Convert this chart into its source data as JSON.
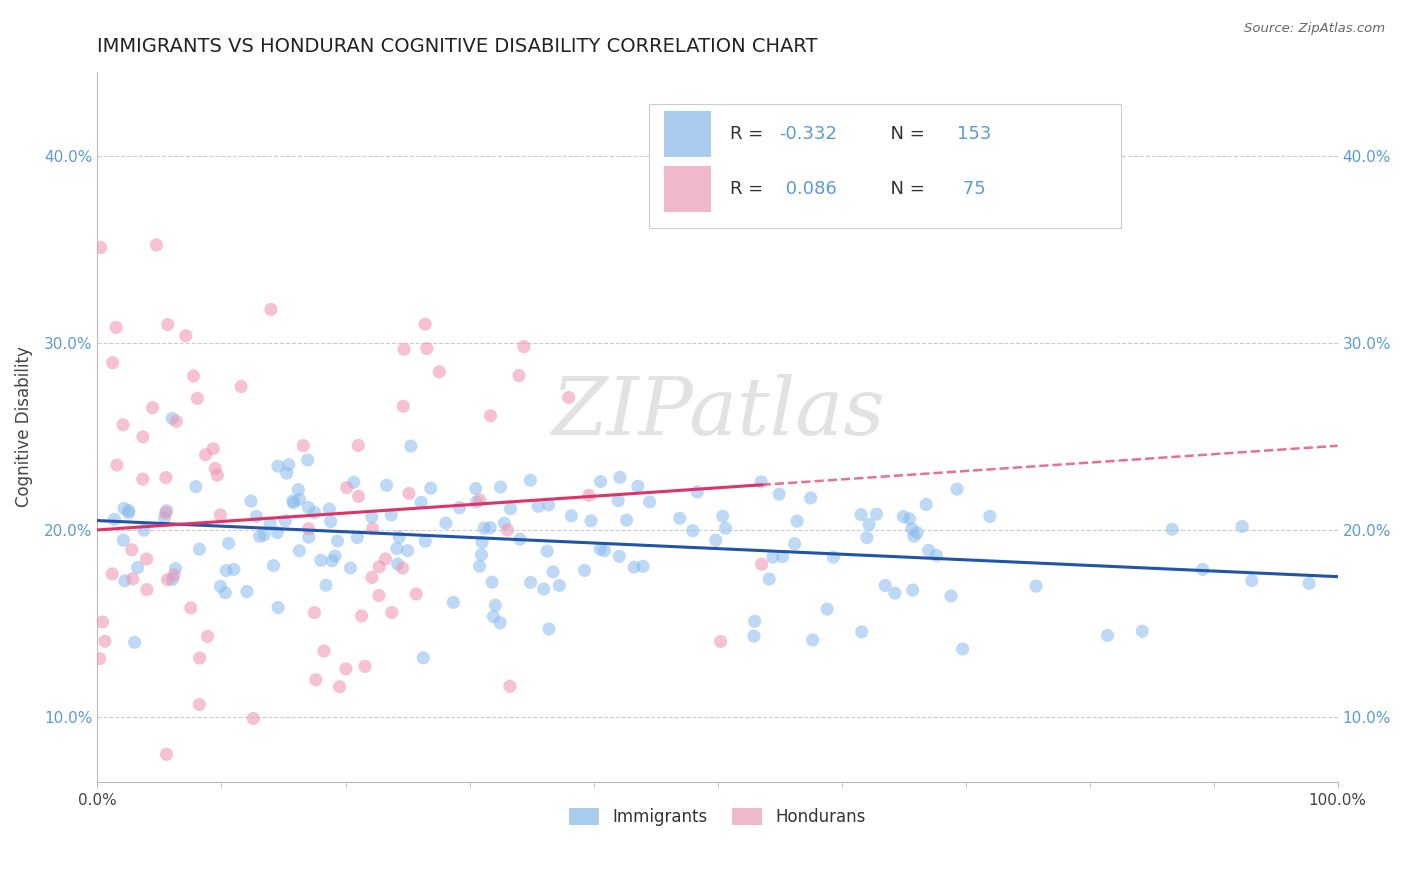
{
  "title": "IMMIGRANTS VS HONDURAN COGNITIVE DISABILITY CORRELATION CHART",
  "source_text": "Source: ZipAtlas.com",
  "ylabel": "Cognitive Disability",
  "y_ticks": [
    0.1,
    0.2,
    0.3,
    0.4
  ],
  "y_tick_labels": [
    "10.0%",
    "20.0%",
    "30.0%",
    "40.0%"
  ],
  "xlim": [
    0.0,
    1.0
  ],
  "ylim": [
    0.065,
    0.445
  ],
  "immigrants_color": "#88bbee",
  "hondurans_color": "#f090b0",
  "trend_immigrants_color": "#2255aa",
  "trend_hondurans_color": "#dd3366",
  "legend_imm_color": "#aaccee",
  "legend_hon_color": "#f0b8cc",
  "watermark": "ZIPatlas",
  "background_color": "#ffffff",
  "grid_color": "#cccccc",
  "r_immigrants": -0.332,
  "n_immigrants": 153,
  "r_hondurans": 0.086,
  "n_hondurans": 75,
  "legend_label_immigrants": "Immigrants",
  "legend_label_hondurans": "Hondurans",
  "tick_color": "#5b9bd5",
  "title_fontsize": 14,
  "axis_label_fontsize": 11,
  "legend_r_imm": "R = -0.332",
  "legend_n_imm": "N = 153",
  "legend_r_hon": "R =  0.086",
  "legend_n_hon": "N =  75"
}
